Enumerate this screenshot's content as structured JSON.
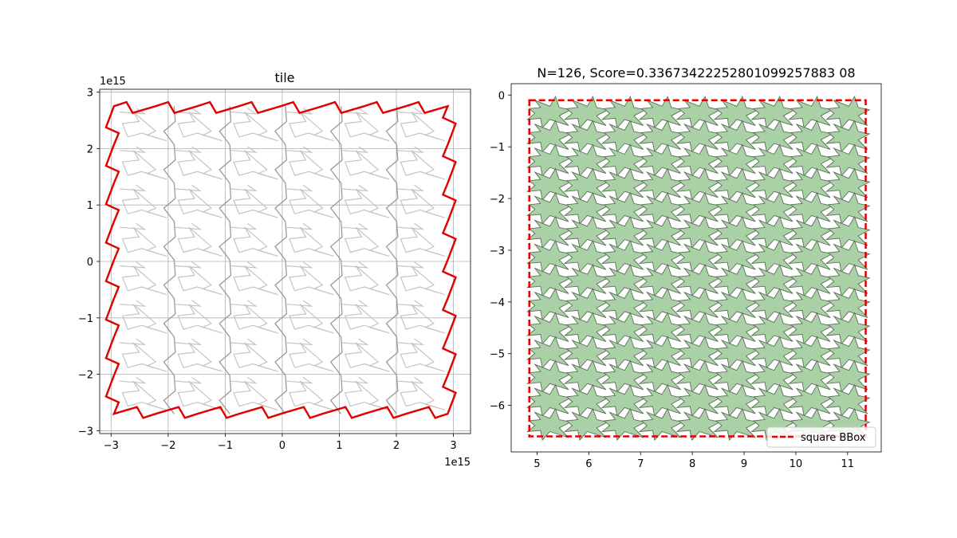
{
  "chart_data": [
    {
      "type": "line",
      "title": "tile",
      "xlabel": "",
      "ylabel": "",
      "x_offset_label": "1e15",
      "y_offset_label": "1e15",
      "xlim": [
        -3.2,
        3.3
      ],
      "ylim": [
        -3.05,
        3.05
      ],
      "x_ticks": [
        -3,
        -2,
        -1,
        0,
        1,
        2,
        3
      ],
      "x_tick_labels": [
        "−3",
        "−2",
        "−1",
        "0",
        "1",
        "2",
        "3"
      ],
      "y_ticks": [
        -3,
        -2,
        -1,
        0,
        1,
        2,
        3
      ],
      "y_tick_labels": [
        "−3",
        "−2",
        "−1",
        "0",
        "1",
        "2",
        "3"
      ],
      "grid": true,
      "outline_color": "#e00000",
      "inner_color": "#aaaaaa",
      "outline_corners": [
        [
          -2.95,
          -2.7
        ],
        [
          2.9,
          -2.7
        ],
        [
          2.9,
          2.75
        ],
        [
          -2.95,
          2.75
        ]
      ]
    },
    {
      "type": "scatter",
      "title": "N=126, Score=0.33673422252801099257883 08",
      "xlabel": "",
      "ylabel": "",
      "xlim": [
        4.5,
        11.65
      ],
      "ylim": [
        -6.9,
        0.22
      ],
      "x_ticks": [
        5,
        6,
        7,
        8,
        9,
        10,
        11
      ],
      "x_tick_labels": [
        "5",
        "6",
        "7",
        "8",
        "9",
        "10",
        "11"
      ],
      "y_ticks": [
        -6,
        -5,
        -4,
        -3,
        -2,
        -1,
        0
      ],
      "y_tick_labels": [
        "−6",
        "−5",
        "−4",
        "−3",
        "−2",
        "−1",
        "0"
      ],
      "grid": false,
      "n_shapes": 126,
      "shape_fill": "#a5cfa0",
      "shape_edge": "#5a6e58",
      "bbox": {
        "x0": 4.85,
        "x1": 11.35,
        "y0": -6.6,
        "y1": -0.1
      },
      "bbox_color": "#e00000",
      "legend": {
        "entries": [
          "square BBox"
        ],
        "placement": "lower-right"
      }
    }
  ]
}
